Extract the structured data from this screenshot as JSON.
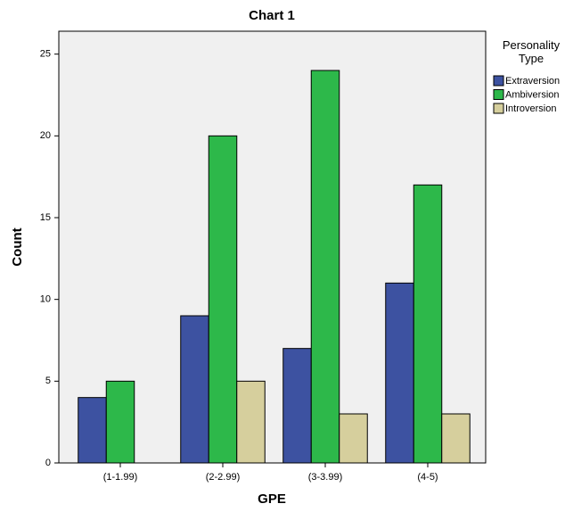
{
  "chart_data": {
    "type": "bar",
    "title": "Chart 1",
    "x_label": "GPE",
    "y_label": "Count",
    "categories": [
      "(1-1.99)",
      "(2-2.99)",
      "(3-3.99)",
      "(4-5)"
    ],
    "legend_title": "Personality Type",
    "series": [
      {
        "name": "Extraversion",
        "color": "#3d52a1",
        "values": [
          4,
          9,
          7,
          11
        ]
      },
      {
        "name": "Ambiversion",
        "color": "#2db84a",
        "values": [
          5,
          20,
          24,
          17
        ]
      },
      {
        "name": "Introversion",
        "color": "#d6cf9d",
        "values": [
          null,
          5,
          3,
          3
        ]
      }
    ],
    "ylim": [
      0,
      26.4
    ],
    "yticks": [
      0,
      5,
      10,
      15,
      20,
      25
    ],
    "grid": false
  }
}
